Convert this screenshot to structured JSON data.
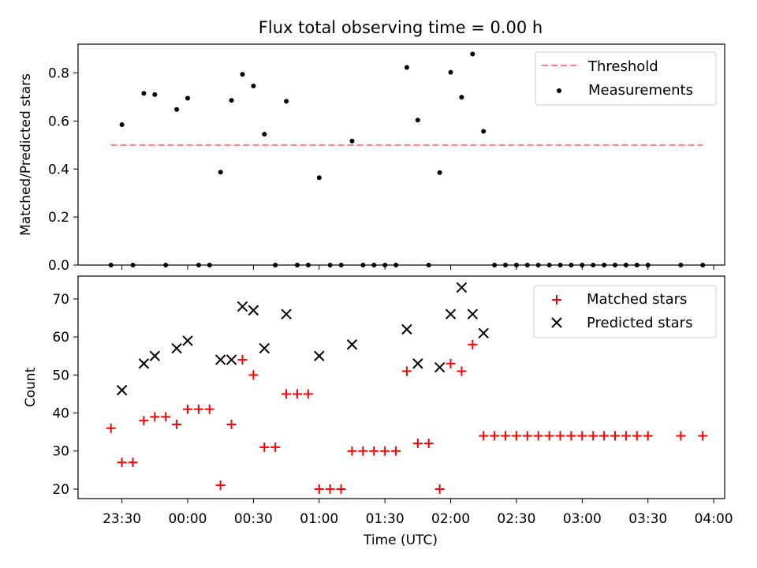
{
  "figure": {
    "title": "Flux total observing time = 0.00 h"
  },
  "colors": {
    "threshold": "#ff7f7f",
    "measurement": "#000000",
    "matched": "#ff0000",
    "predicted": "#000000"
  },
  "chart_data": [
    {
      "type": "scatter",
      "xlabel": "",
      "ylabel": "Matched/Predicted stars",
      "xlim": [
        "23:10",
        "04:05"
      ],
      "ylim": [
        0,
        0.92
      ],
      "yticks": [
        0.0,
        0.2,
        0.4,
        0.6,
        0.8
      ],
      "ytick_labels": [
        "0.0",
        "0.2",
        "0.4",
        "0.6",
        "0.8"
      ],
      "xtick_labels_visible": false,
      "legend": {
        "placement": "top-right",
        "entries": [
          {
            "key": "threshold",
            "label": "Threshold"
          },
          {
            "key": "measurement",
            "label": "Measurements"
          }
        ]
      },
      "threshold": {
        "value": 0.5,
        "x_start": "23:25",
        "x_end": "03:55"
      },
      "series": [
        {
          "name": "Measurements",
          "marker": "dot",
          "x": [
            "23:25",
            "23:30",
            "23:35",
            "23:40",
            "23:45",
            "23:50",
            "23:55",
            "00:00",
            "00:05",
            "00:10",
            "00:15",
            "00:20",
            "00:25",
            "00:30",
            "00:35",
            "00:40",
            "00:45",
            "00:50",
            "00:55",
            "01:00",
            "01:05",
            "01:10",
            "01:15",
            "01:20",
            "01:25",
            "01:30",
            "01:35",
            "01:40",
            "01:45",
            "01:50",
            "01:55",
            "02:00",
            "02:05",
            "02:10",
            "02:15",
            "02:20",
            "02:25",
            "02:30",
            "02:35",
            "02:40",
            "02:45",
            "02:50",
            "02:55",
            "03:00",
            "03:05",
            "03:10",
            "03:15",
            "03:20",
            "03:25",
            "03:30",
            "03:45",
            "03:55"
          ],
          "y": [
            0.0,
            0.585,
            0.0,
            0.715,
            0.71,
            0.0,
            0.648,
            0.695,
            0.0,
            0.0,
            0.387,
            0.686,
            0.794,
            0.746,
            0.545,
            0.0,
            0.682,
            0.0,
            0.0,
            0.364,
            0.0,
            0.0,
            0.517,
            0.0,
            0.0,
            0.0,
            0.0,
            0.823,
            0.604,
            0.0,
            0.385,
            0.803,
            0.699,
            0.879,
            0.557,
            0.0,
            0.0,
            0.0,
            0.0,
            0.0,
            0.0,
            0.0,
            0.0,
            0.0,
            0.0,
            0.0,
            0.0,
            0.0,
            0.0,
            0.0,
            0.0,
            0.0
          ]
        }
      ]
    },
    {
      "type": "scatter",
      "xlabel": "Time (UTC)",
      "ylabel": "Count",
      "xlim": [
        "23:10",
        "04:05"
      ],
      "ylim": [
        17.5,
        76
      ],
      "yticks": [
        20,
        30,
        40,
        50,
        60,
        70
      ],
      "ytick_labels": [
        "20",
        "30",
        "40",
        "50",
        "60",
        "70"
      ],
      "xticks": [
        "23:30",
        "00:00",
        "00:30",
        "01:00",
        "01:30",
        "02:00",
        "02:30",
        "03:00",
        "03:30",
        "04:00"
      ],
      "xtick_labels": [
        "23:30",
        "00:00",
        "00:30",
        "01:00",
        "01:30",
        "02:00",
        "02:30",
        "03:00",
        "03:30",
        "04:00"
      ],
      "legend": {
        "placement": "top-right",
        "entries": [
          {
            "key": "matched",
            "label": "Matched stars"
          },
          {
            "key": "predicted",
            "label": "Predicted stars"
          }
        ]
      },
      "series": [
        {
          "name": "Matched stars",
          "marker": "plus",
          "x": [
            "23:25",
            "23:30",
            "23:35",
            "23:40",
            "23:45",
            "23:50",
            "23:55",
            "00:00",
            "00:05",
            "00:10",
            "00:15",
            "00:20",
            "00:25",
            "00:30",
            "00:35",
            "00:40",
            "00:45",
            "00:50",
            "00:55",
            "01:00",
            "01:05",
            "01:10",
            "01:15",
            "01:20",
            "01:25",
            "01:30",
            "01:35",
            "01:40",
            "01:45",
            "01:50",
            "01:55",
            "02:00",
            "02:05",
            "02:10",
            "02:15",
            "02:20",
            "02:25",
            "02:30",
            "02:35",
            "02:40",
            "02:45",
            "02:50",
            "02:55",
            "03:00",
            "03:05",
            "03:10",
            "03:15",
            "03:20",
            "03:25",
            "03:30",
            "03:45",
            "03:55"
          ],
          "y": [
            36,
            27,
            27,
            38,
            39,
            39,
            37,
            41,
            41,
            41,
            21,
            37,
            54,
            50,
            31,
            31,
            45,
            45,
            45,
            20,
            20,
            20,
            30,
            30,
            30,
            30,
            30,
            51,
            32,
            32,
            20,
            53,
            51,
            58,
            34,
            34,
            34,
            34,
            34,
            34,
            34,
            34,
            34,
            34,
            34,
            34,
            34,
            34,
            34,
            34,
            34,
            34
          ]
        },
        {
          "name": "Predicted stars",
          "marker": "x",
          "x": [
            "23:30",
            "23:40",
            "23:45",
            "23:55",
            "00:00",
            "00:15",
            "00:20",
            "00:25",
            "00:30",
            "00:35",
            "00:45",
            "01:00",
            "01:15",
            "01:40",
            "01:45",
            "01:55",
            "02:00",
            "02:05",
            "02:10",
            "02:15"
          ],
          "y": [
            46,
            53,
            55,
            57,
            59,
            54,
            54,
            68,
            67,
            57,
            66,
            55,
            58,
            62,
            53,
            52,
            66,
            73,
            66,
            61
          ]
        }
      ]
    }
  ]
}
